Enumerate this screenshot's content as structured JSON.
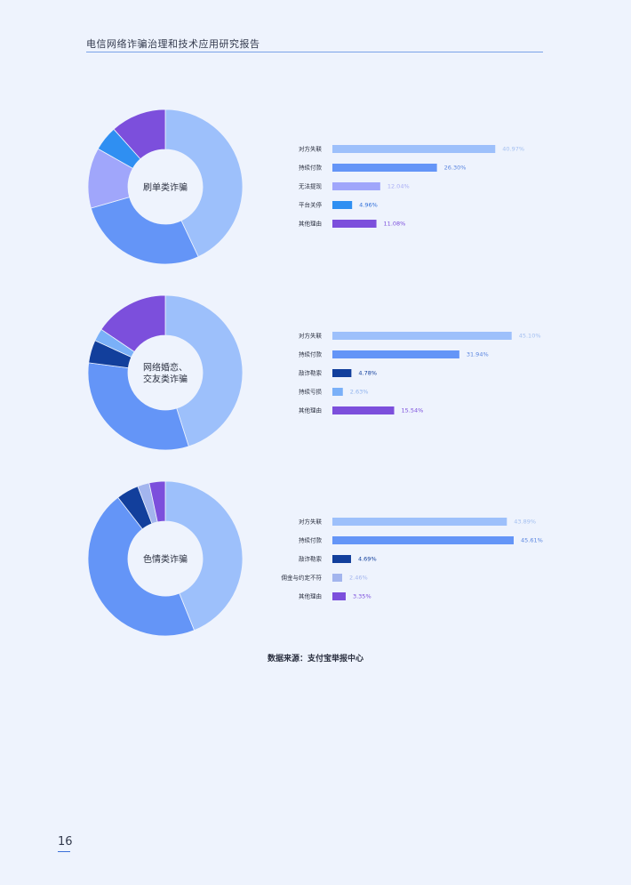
{
  "header": {
    "title": "电信网络诈骗治理和技术应用研究报告"
  },
  "source_note": "数据来源：支付宝举报中心",
  "page_number": "16",
  "chart_data": [
    {
      "type": "pie",
      "center_label": [
        "刷单类诈骗"
      ],
      "categories": [
        "对方失联",
        "持续付款",
        "无法提现",
        "平台关停",
        "其他理由"
      ],
      "values": [
        40.97,
        26.3,
        12.04,
        4.96,
        11.08
      ],
      "value_labels": [
        "40.97%",
        "26.30%",
        "12.04%",
        "4.96%",
        "11.08%"
      ],
      "colors": [
        "#9dc0fb",
        "#6495f7",
        "#a0a6fb",
        "#2f8ff2",
        "#7c4fdc"
      ],
      "value_colors": [
        "#a3bff0",
        "#5b86e0",
        "#a9aef5",
        "#2f6fd8",
        "#7c4fdc"
      ]
    },
    {
      "type": "pie",
      "center_label": [
        "网络婚恋、",
        "交友类诈骗"
      ],
      "categories": [
        "对方失联",
        "持续付款",
        "敲诈勒索",
        "持续亏损",
        "其他理由"
      ],
      "values": [
        45.1,
        31.94,
        4.78,
        2.63,
        15.54
      ],
      "value_labels": [
        "45.10%",
        "31.94%",
        "4.78%",
        "2.63%",
        "15.54%"
      ],
      "colors": [
        "#9dc0fb",
        "#6495f7",
        "#123f9c",
        "#7ab0f8",
        "#7c4fdc"
      ],
      "value_colors": [
        "#a3bff0",
        "#5b86e0",
        "#123f9c",
        "#8fb3ee",
        "#7c4fdc"
      ]
    },
    {
      "type": "pie",
      "center_label": [
        "色情类诈骗"
      ],
      "categories": [
        "对方失联",
        "持续付款",
        "敲诈勒索",
        "佣金与约定不符",
        "其他理由"
      ],
      "values": [
        43.89,
        45.61,
        4.69,
        2.46,
        3.35
      ],
      "value_labels": [
        "43.89%",
        "45.61%",
        "4.69%",
        "2.46%",
        "3.35%"
      ],
      "colors": [
        "#9dc0fb",
        "#6495f7",
        "#123f9c",
        "#a3b5ee",
        "#7c4fdc"
      ],
      "value_colors": [
        "#a3bff0",
        "#5b86e0",
        "#123f9c",
        "#a3b5ee",
        "#7c4fdc"
      ]
    }
  ]
}
